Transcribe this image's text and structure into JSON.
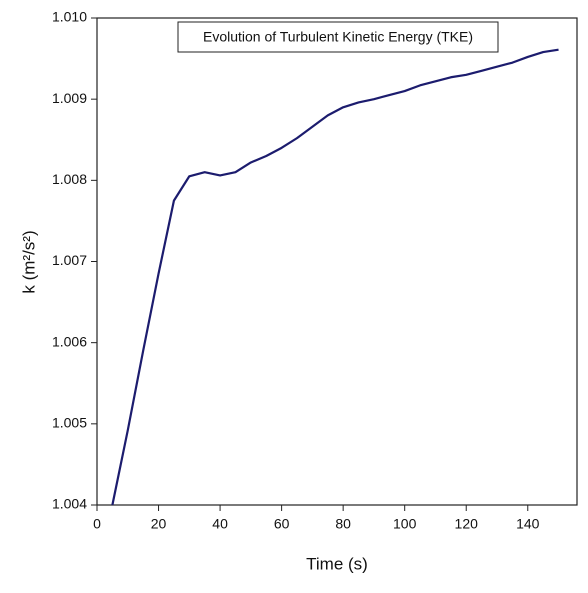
{
  "chart_data": {
    "type": "line",
    "title": "Evolution of Turbulent Kinetic Energy (TKE)",
    "xlabel": "Time (s)",
    "ylabel": "k (m²/s²)",
    "x": [
      5,
      10,
      15,
      20,
      25,
      30,
      35,
      40,
      45,
      50,
      55,
      60,
      65,
      70,
      75,
      80,
      85,
      90,
      95,
      100,
      105,
      110,
      115,
      120,
      125,
      130,
      135,
      140,
      145,
      150
    ],
    "series": [
      {
        "color": "#1c1c6e",
        "values": [
          1.004,
          1.00492,
          1.0059,
          1.00685,
          1.00775,
          1.00805,
          1.0081,
          1.00806,
          1.0081,
          1.00822,
          1.0083,
          1.0084,
          1.00852,
          1.00866,
          1.0088,
          1.0089,
          1.00896,
          1.009,
          1.00905,
          1.0091,
          1.00917,
          1.00922,
          1.00927,
          1.0093,
          1.00935,
          1.0094,
          1.00945,
          1.00952,
          1.00958,
          1.00961
        ]
      }
    ],
    "xlim": [
      0,
      156
    ],
    "xticks": [
      0,
      20,
      40,
      60,
      80,
      100,
      120,
      140
    ],
    "ylim": [
      1.004,
      1.01
    ],
    "yticks": [
      1.004,
      1.005,
      1.006,
      1.007,
      1.008,
      1.009,
      {
        "value": 1.01,
        "label": "1.010"
      }
    ]
  }
}
